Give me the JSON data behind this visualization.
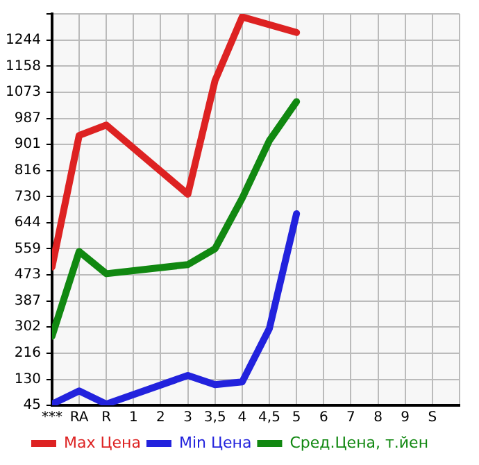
{
  "chart_data": {
    "type": "line",
    "categories": [
      "***",
      "RA",
      "R",
      "1",
      "2",
      "3",
      "3,5",
      "4",
      "4,5",
      "5",
      "6",
      "7",
      "8",
      "9",
      "S"
    ],
    "series": [
      {
        "name": "Max Цена",
        "color": "#dd2222",
        "values": [
          499,
          931,
          965,
          null,
          null,
          738,
          1111,
          1320,
          null,
          1269,
          null,
          null,
          null,
          null,
          null
        ]
      },
      {
        "name": "Min Цена",
        "color": "#2222dd",
        "values": [
          49,
          92,
          49,
          null,
          null,
          143,
          113,
          122,
          297,
          674,
          null,
          null,
          null,
          null,
          null
        ]
      },
      {
        "name": "Сред.Цена, т.йен",
        "color": "#118811",
        "values": [
          272,
          550,
          477,
          null,
          null,
          507,
          559,
          725,
          914,
          1042,
          null,
          null,
          null,
          null,
          null
        ]
      }
    ],
    "ylim": [
      45,
      1330
    ],
    "yticks": [
      45,
      130,
      216,
      302,
      387,
      473,
      559,
      644,
      730,
      816,
      901,
      987,
      1073,
      1158,
      1244,
      {
        "value": 1330,
        "label": null
      }
    ],
    "grid": true,
    "legend": "bottom",
    "marker": "none",
    "line_style": "solid"
  }
}
